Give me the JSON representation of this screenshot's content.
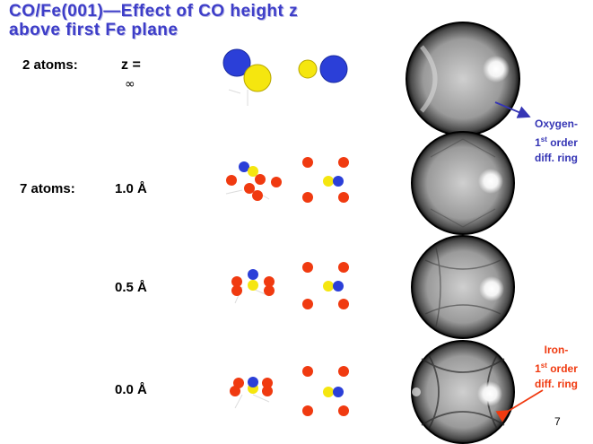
{
  "title": {
    "line1": "CO/Fe(001)—Effect of CO height z",
    "line2": "above first Fe plane"
  },
  "rows": [
    {
      "cluster": "2 atoms:",
      "height": "z =",
      "height_sub": "∞"
    },
    {
      "cluster": "7 atoms:",
      "height": "1.0 Å"
    },
    {
      "cluster": "",
      "height": "0.5 Å"
    },
    {
      "cluster": "",
      "height": "0.0 Å"
    }
  ],
  "annotations": {
    "oxygen": {
      "line1": "Oxygen-",
      "line2_num": "1",
      "line2_sup": "st",
      "line2_rest": " order",
      "line3": "diff. ring",
      "color": "#3535b5"
    },
    "iron": {
      "line1": "Iron-",
      "line2_num": "1",
      "line2_sup": "st",
      "line2_rest": " order",
      "line3": "diff. ring",
      "color": "#f03a10"
    }
  },
  "page_number": "7",
  "colors": {
    "title": "#3d3dc8",
    "fe_atom": "#f03a10",
    "o_atom": "#2b3fd8",
    "c_atom": "#f0e20a"
  }
}
